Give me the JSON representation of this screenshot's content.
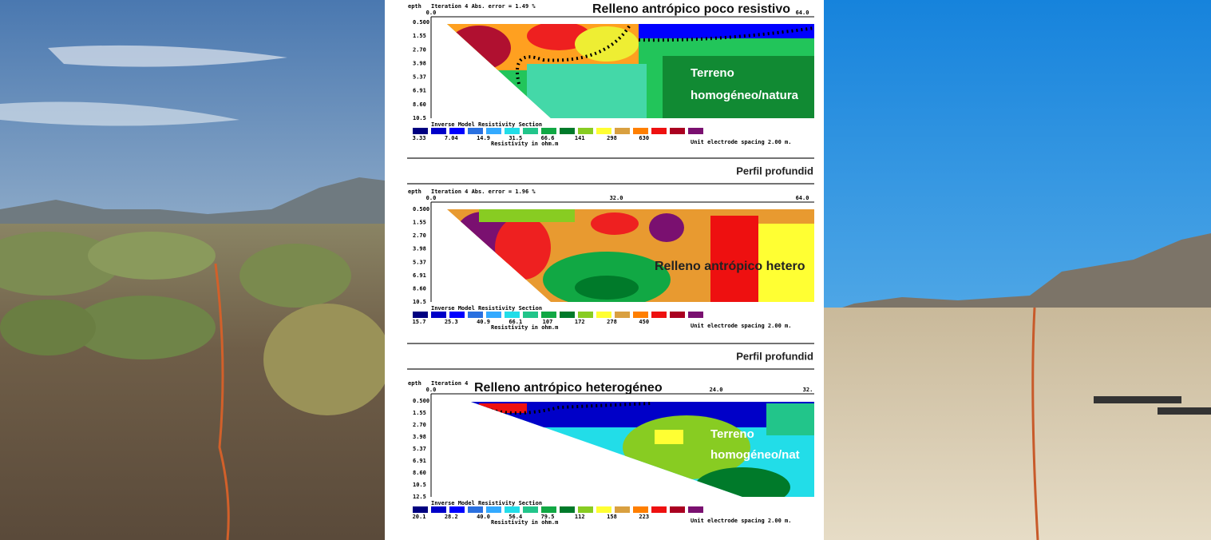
{
  "sections": [
    {
      "depth_label": "epth",
      "iteration": "Iteration 4 Abs. error = 1.49 %",
      "x_labels": [
        "0.0",
        "64.0"
      ],
      "depths": [
        "0.500",
        "1.55",
        "2.70",
        "3.98",
        "5.37",
        "6.91",
        "8.60",
        "10.5"
      ],
      "annotations": [
        "Relleno antrópico poco resistivo",
        "Terreno",
        "homogéneo/natura"
      ],
      "model_title": "Inverse Model Resistivity Section",
      "scale_values": [
        "3.33",
        "7.04",
        "14.9",
        "31.5",
        "66.6",
        "141",
        "298",
        "630"
      ],
      "scale_unit": "Resistivity in ohm.m",
      "spacing": "Unit electrode spacing 2.00 m.",
      "caption": "Perfil profundid"
    },
    {
      "depth_label": "epth",
      "iteration": "Iteration 4 Abs. error = 1.96 %",
      "x_labels": [
        "0.0",
        "32.0",
        "64.0"
      ],
      "depths": [
        "0.500",
        "1.55",
        "2.70",
        "3.98",
        "5.37",
        "6.91",
        "8.60",
        "10.5"
      ],
      "annotations": [
        "Relleno antrópico hetero"
      ],
      "model_title": "Inverse Model Resistivity Section",
      "scale_values": [
        "15.7",
        "25.3",
        "40.9",
        "66.1",
        "107",
        "172",
        "278",
        "450"
      ],
      "scale_unit": "Resistivity in ohm.m",
      "spacing": "Unit electrode spacing 2.00 m.",
      "caption": "Perfil profundid"
    },
    {
      "depth_label": "epth",
      "iteration": "Iteration 4",
      "x_labels": [
        "0.0",
        "24.0",
        "32."
      ],
      "depths": [
        "0.500",
        "1.55",
        "2.70",
        "3.98",
        "5.37",
        "6.91",
        "8.60",
        "10.5",
        "12.5"
      ],
      "annotations": [
        "Relleno antrópico heterogéneo",
        "Terreno",
        "homogéneo/nat"
      ],
      "model_title": "Inverse Model Resistivity Section",
      "scale_values": [
        "20.1",
        "28.2",
        "40.0",
        "56.4",
        "79.5",
        "112",
        "158",
        "223"
      ],
      "scale_unit": "Resistivity in ohm.m",
      "spacing": "Unit electrode spacing 2.00 m."
    }
  ],
  "scale_colors": [
    "#000080",
    "#0000c8",
    "#0000ff",
    "#2a70e0",
    "#33aaff",
    "#22dde8",
    "#22c58a",
    "#11a844",
    "#007a2a",
    "#88cc22",
    "#ffff33",
    "#d9a040",
    "#ff7f00",
    "#ee1010",
    "#aa0020",
    "#7a1070"
  ]
}
